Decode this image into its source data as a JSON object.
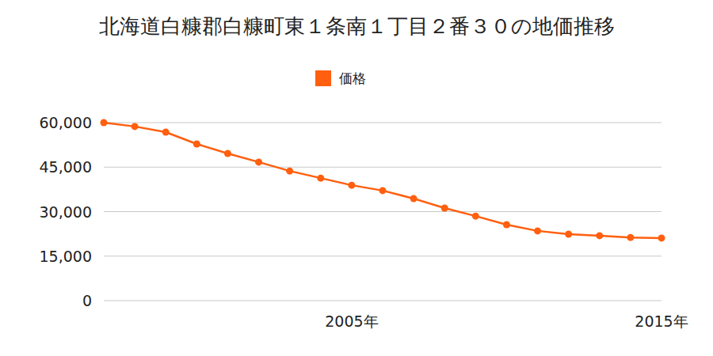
{
  "chart_data": {
    "type": "line",
    "title": "北海道白糠郡白糠町東１条南１丁目２番３０の地価推移",
    "x": [
      1997,
      1998,
      1999,
      2000,
      2001,
      2002,
      2003,
      2004,
      2005,
      2006,
      2007,
      2008,
      2009,
      2010,
      2011,
      2012,
      2013,
      2014,
      2015
    ],
    "series": [
      {
        "name": "価格",
        "color": "#ff5f0f",
        "marker": "circle",
        "values": [
          60000,
          58700,
          56800,
          52800,
          49600,
          46700,
          43700,
          41300,
          38900,
          37100,
          34400,
          31200,
          28500,
          25600,
          23500,
          22400,
          21900,
          21300,
          21100
        ]
      }
    ],
    "xlim": [
      1997,
      2015
    ],
    "xticks": [
      {
        "value": 2005,
        "label": "2005年"
      },
      {
        "value": 2015,
        "label": "2015年"
      }
    ],
    "ylim": [
      0,
      60000
    ],
    "yticks": [
      0,
      {
        "value": 15000,
        "label": "15,000"
      },
      {
        "value": 30000,
        "label": "30,000"
      },
      {
        "value": 45000,
        "label": "45,000"
      },
      {
        "value": 60000,
        "label": "60,000"
      }
    ],
    "grid": true,
    "legend": "top"
  }
}
